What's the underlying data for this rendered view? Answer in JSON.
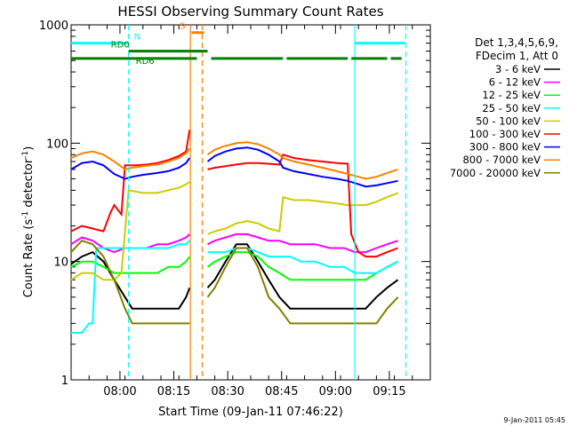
{
  "chart_data": {
    "type": "line",
    "title": "HESSI Observing Summary Count Rates",
    "xlabel": "Start Time (09-Jan-11 07:46:22)",
    "ylabel_main": "Count Rate (s",
    "ylabel_sup1": "-1",
    "ylabel_mid": " detector",
    "ylabel_sup2": "-1",
    "ylabel_end": ")",
    "yscale": "log",
    "ylim": [
      1,
      1000
    ],
    "xlim_minutes": [
      0,
      100
    ],
    "x_ticks": [
      {
        "m": 13.6,
        "label": "08:00"
      },
      {
        "m": 28.6,
        "label": "08:15"
      },
      {
        "m": 43.6,
        "label": "08:30"
      },
      {
        "m": 58.6,
        "label": "08:45"
      },
      {
        "m": 73.6,
        "label": "09:00"
      },
      {
        "m": 88.6,
        "label": "09:15"
      }
    ],
    "y_ticks": [
      {
        "v": 1,
        "label": "1"
      },
      {
        "v": 10,
        "label": "10"
      },
      {
        "v": 100,
        "label": "100"
      },
      {
        "v": 1000,
        "label": "1000"
      }
    ],
    "legend_header": [
      "Det 1,3,4,5,6,9,",
      "FDecim 1, Att 0"
    ],
    "series": [
      {
        "name": "3 - 6 keV",
        "color": "#000000",
        "values": [
          [
            0,
            9.5
          ],
          [
            3,
            11
          ],
          [
            6,
            12
          ],
          [
            9,
            10
          ],
          [
            12,
            7
          ],
          [
            15,
            5
          ],
          [
            17,
            4
          ],
          [
            20,
            4
          ],
          [
            24,
            4
          ],
          [
            27,
            4
          ],
          [
            30,
            4
          ],
          [
            32,
            5
          ],
          [
            33,
            6
          ],
          [
            38,
            6
          ],
          [
            40,
            7
          ],
          [
            43,
            10
          ],
          [
            46,
            14
          ],
          [
            49,
            14
          ],
          [
            52,
            10
          ],
          [
            55,
            7
          ],
          [
            58,
            5
          ],
          [
            61,
            4
          ],
          [
            64,
            4
          ],
          [
            68,
            4
          ],
          [
            72,
            4
          ],
          [
            76,
            4
          ],
          [
            79,
            4
          ],
          [
            82,
            4
          ],
          [
            85,
            5
          ],
          [
            88,
            6
          ],
          [
            91,
            7
          ]
        ]
      },
      {
        "name": "6 - 12 keV",
        "color": "#ff00ff",
        "values": [
          [
            0,
            14
          ],
          [
            3,
            16
          ],
          [
            6,
            15
          ],
          [
            9,
            13
          ],
          [
            12,
            12
          ],
          [
            15,
            13
          ],
          [
            18,
            13
          ],
          [
            21,
            13
          ],
          [
            24,
            14
          ],
          [
            27,
            14
          ],
          [
            30,
            15
          ],
          [
            32,
            16
          ],
          [
            33,
            17
          ],
          [
            38,
            14
          ],
          [
            40,
            15
          ],
          [
            43,
            16
          ],
          [
            46,
            17
          ],
          [
            49,
            17
          ],
          [
            52,
            16
          ],
          [
            55,
            15
          ],
          [
            58,
            15
          ],
          [
            61,
            14
          ],
          [
            64,
            14
          ],
          [
            68,
            14
          ],
          [
            72,
            13
          ],
          [
            76,
            13
          ],
          [
            79,
            12
          ],
          [
            82,
            12
          ],
          [
            85,
            13
          ],
          [
            88,
            14
          ],
          [
            91,
            15
          ]
        ]
      },
      {
        "name": "12 - 25 keV",
        "color": "#00ff00",
        "values": [
          [
            0,
            9
          ],
          [
            3,
            10
          ],
          [
            6,
            10
          ],
          [
            9,
            9
          ],
          [
            12,
            8
          ],
          [
            15,
            8
          ],
          [
            18,
            8
          ],
          [
            21,
            8
          ],
          [
            24,
            8
          ],
          [
            27,
            9
          ],
          [
            30,
            9
          ],
          [
            32,
            10
          ],
          [
            33,
            11
          ],
          [
            38,
            9
          ],
          [
            40,
            10
          ],
          [
            43,
            11
          ],
          [
            46,
            12
          ],
          [
            49,
            12
          ],
          [
            52,
            11
          ],
          [
            55,
            9
          ],
          [
            58,
            8
          ],
          [
            61,
            7
          ],
          [
            64,
            7
          ],
          [
            68,
            7
          ],
          [
            72,
            7
          ],
          [
            76,
            7
          ],
          [
            79,
            7
          ],
          [
            82,
            7
          ],
          [
            85,
            8
          ],
          [
            88,
            9
          ],
          [
            91,
            10
          ]
        ]
      },
      {
        "name": "25 - 50 keV",
        "color": "#00ffff",
        "values": [
          [
            0,
            2.5
          ],
          [
            3,
            2.5
          ],
          [
            5,
            3
          ],
          [
            6,
            3
          ],
          [
            7,
            13
          ],
          [
            9,
            13
          ],
          [
            12,
            13
          ],
          [
            15,
            13
          ],
          [
            18,
            13
          ],
          [
            21,
            13
          ],
          [
            24,
            13
          ],
          [
            27,
            13
          ],
          [
            30,
            14
          ],
          [
            32,
            14
          ],
          [
            33,
            15
          ],
          [
            38,
            12
          ],
          [
            40,
            12
          ],
          [
            43,
            12
          ],
          [
            46,
            13
          ],
          [
            49,
            13
          ],
          [
            52,
            12
          ],
          [
            55,
            11
          ],
          [
            58,
            11
          ],
          [
            61,
            11
          ],
          [
            64,
            10
          ],
          [
            68,
            10
          ],
          [
            72,
            9
          ],
          [
            76,
            9
          ],
          [
            79,
            8
          ],
          [
            82,
            8
          ],
          [
            85,
            8
          ],
          [
            88,
            9
          ],
          [
            91,
            10
          ]
        ]
      },
      {
        "name": "50 - 100 keV",
        "color": "#cccc00",
        "values": [
          [
            0,
            7
          ],
          [
            3,
            8
          ],
          [
            6,
            8
          ],
          [
            9,
            7
          ],
          [
            12,
            7
          ],
          [
            14,
            8
          ],
          [
            16,
            40
          ],
          [
            20,
            38
          ],
          [
            24,
            38
          ],
          [
            27,
            40
          ],
          [
            30,
            42
          ],
          [
            32,
            45
          ],
          [
            33,
            47
          ],
          [
            38,
            17
          ],
          [
            40,
            18
          ],
          [
            43,
            19
          ],
          [
            46,
            21
          ],
          [
            49,
            22
          ],
          [
            52,
            21
          ],
          [
            55,
            19
          ],
          [
            58,
            18
          ],
          [
            59,
            35
          ],
          [
            62,
            33
          ],
          [
            66,
            33
          ],
          [
            70,
            32
          ],
          [
            74,
            31
          ],
          [
            77,
            30
          ],
          [
            80,
            30
          ],
          [
            82,
            30
          ],
          [
            85,
            32
          ],
          [
            88,
            35
          ],
          [
            91,
            38
          ]
        ]
      },
      {
        "name": "100 - 300 keV",
        "color": "#ff0000",
        "values": [
          [
            0,
            18
          ],
          [
            3,
            20
          ],
          [
            6,
            19
          ],
          [
            9,
            18
          ],
          [
            11,
            26
          ],
          [
            12,
            30
          ],
          [
            14,
            25
          ],
          [
            15,
            65
          ],
          [
            18,
            65
          ],
          [
            21,
            66
          ],
          [
            24,
            68
          ],
          [
            27,
            72
          ],
          [
            30,
            78
          ],
          [
            32,
            85
          ],
          [
            33,
            130
          ],
          [
            38,
            60
          ],
          [
            40,
            62
          ],
          [
            43,
            64
          ],
          [
            46,
            66
          ],
          [
            49,
            68
          ],
          [
            52,
            68
          ],
          [
            55,
            67
          ],
          [
            58,
            66
          ],
          [
            59,
            80
          ],
          [
            62,
            75
          ],
          [
            66,
            72
          ],
          [
            70,
            70
          ],
          [
            74,
            68
          ],
          [
            77,
            67
          ],
          [
            78,
            17
          ],
          [
            80,
            12
          ],
          [
            82,
            11
          ],
          [
            85,
            11
          ],
          [
            88,
            12
          ],
          [
            91,
            13
          ]
        ]
      },
      {
        "name": "300 - 800 keV",
        "color": "#0000ff",
        "values": [
          [
            0,
            60
          ],
          [
            3,
            68
          ],
          [
            6,
            70
          ],
          [
            9,
            65
          ],
          [
            12,
            55
          ],
          [
            15,
            50
          ],
          [
            17,
            52
          ],
          [
            20,
            54
          ],
          [
            24,
            56
          ],
          [
            27,
            58
          ],
          [
            30,
            62
          ],
          [
            32,
            68
          ],
          [
            33,
            75
          ],
          [
            38,
            70
          ],
          [
            40,
            78
          ],
          [
            43,
            85
          ],
          [
            46,
            90
          ],
          [
            49,
            92
          ],
          [
            52,
            88
          ],
          [
            55,
            80
          ],
          [
            58,
            70
          ],
          [
            59,
            62
          ],
          [
            62,
            58
          ],
          [
            66,
            55
          ],
          [
            70,
            52
          ],
          [
            74,
            50
          ],
          [
            77,
            48
          ],
          [
            80,
            45
          ],
          [
            82,
            43
          ],
          [
            85,
            44
          ],
          [
            88,
            46
          ],
          [
            91,
            48
          ]
        ]
      },
      {
        "name": "800 - 7000 keV",
        "color": "#ff8000",
        "values": [
          [
            0,
            75
          ],
          [
            3,
            82
          ],
          [
            6,
            85
          ],
          [
            9,
            80
          ],
          [
            12,
            70
          ],
          [
            15,
            60
          ],
          [
            17,
            62
          ],
          [
            20,
            64
          ],
          [
            24,
            66
          ],
          [
            27,
            70
          ],
          [
            30,
            75
          ],
          [
            32,
            82
          ],
          [
            33,
            90
          ],
          [
            38,
            80
          ],
          [
            40,
            88
          ],
          [
            43,
            95
          ],
          [
            46,
            100
          ],
          [
            49,
            102
          ],
          [
            52,
            98
          ],
          [
            55,
            90
          ],
          [
            58,
            80
          ],
          [
            59,
            75
          ],
          [
            62,
            70
          ],
          [
            66,
            66
          ],
          [
            70,
            62
          ],
          [
            74,
            58
          ],
          [
            77,
            55
          ],
          [
            80,
            52
          ],
          [
            82,
            50
          ],
          [
            85,
            52
          ],
          [
            88,
            56
          ],
          [
            91,
            60
          ]
        ]
      },
      {
        "name": "7000 - 20000 keV",
        "color": "#808000",
        "values": [
          [
            0,
            12
          ],
          [
            3,
            15
          ],
          [
            6,
            14
          ],
          [
            9,
            11
          ],
          [
            12,
            7
          ],
          [
            15,
            4
          ],
          [
            17,
            3
          ],
          [
            20,
            3
          ],
          [
            24,
            3
          ],
          [
            27,
            3
          ],
          [
            30,
            3
          ],
          [
            32,
            3
          ],
          [
            33,
            3
          ],
          [
            38,
            5
          ],
          [
            40,
            6
          ],
          [
            43,
            9
          ],
          [
            46,
            13
          ],
          [
            49,
            13
          ],
          [
            52,
            9
          ],
          [
            55,
            5
          ],
          [
            58,
            4
          ],
          [
            61,
            3
          ],
          [
            64,
            3
          ],
          [
            68,
            3
          ],
          [
            72,
            3
          ],
          [
            76,
            3
          ],
          [
            79,
            3
          ],
          [
            82,
            3
          ],
          [
            85,
            3
          ],
          [
            88,
            4
          ],
          [
            91,
            5
          ]
        ]
      }
    ],
    "annotations": {
      "flags": [
        {
          "label": "N",
          "color": "#00ffff",
          "y": 700,
          "segments": [
            [
              0,
              16
            ]
          ]
        },
        {
          "label": "N",
          "color": "#00ffff",
          "y": 700,
          "segments": [
            [
              79,
              93
            ]
          ],
          "hide_label": true
        },
        {
          "label": "S",
          "color": "#ff8000",
          "y": 860,
          "segments": [
            [
              33.5,
              37
            ]
          ]
        },
        {
          "label": "RD0",
          "color": "#008000",
          "y": 600,
          "segments": [
            [
              16,
              38
            ]
          ]
        },
        {
          "label": "RD6",
          "color": "#008000",
          "y": 520,
          "segments": [
            [
              0,
              35
            ],
            [
              39,
              59
            ],
            [
              60,
              77
            ],
            [
              78,
              88
            ],
            [
              89,
              92
            ]
          ]
        }
      ],
      "vlines": [
        {
          "m": 16,
          "color": "#00ffff",
          "dash": true
        },
        {
          "m": 33.2,
          "color": "#ff8000",
          "dash": false
        },
        {
          "m": 36.5,
          "color": "#ff8000",
          "dash": true
        },
        {
          "m": 79,
          "color": "#00ffff",
          "dash": false
        },
        {
          "m": 93.2,
          "color": "#00ffff",
          "dash": true
        }
      ],
      "gap": [
        34,
        38
      ]
    },
    "footer": "9-Jan-2011 05:45"
  }
}
